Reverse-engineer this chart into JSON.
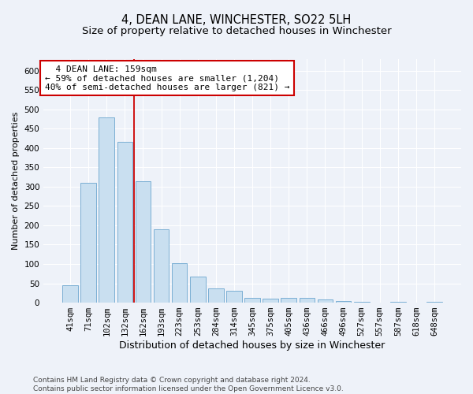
{
  "title": "4, DEAN LANE, WINCHESTER, SO22 5LH",
  "subtitle": "Size of property relative to detached houses in Winchester",
  "xlabel": "Distribution of detached houses by size in Winchester",
  "ylabel": "Number of detached properties",
  "categories": [
    "41sqm",
    "71sqm",
    "102sqm",
    "132sqm",
    "162sqm",
    "193sqm",
    "223sqm",
    "253sqm",
    "284sqm",
    "314sqm",
    "345sqm",
    "375sqm",
    "405sqm",
    "436sqm",
    "466sqm",
    "496sqm",
    "527sqm",
    "557sqm",
    "587sqm",
    "618sqm",
    "648sqm"
  ],
  "values": [
    45,
    310,
    480,
    415,
    315,
    190,
    103,
    68,
    37,
    30,
    13,
    10,
    12,
    12,
    8,
    5,
    3,
    1,
    3,
    1,
    3
  ],
  "bar_color": "#c9dff0",
  "bar_edge_color": "#7aafd4",
  "vline_x_index": 3.5,
  "vline_color": "#cc0000",
  "annotation_text": "  4 DEAN LANE: 159sqm\n← 59% of detached houses are smaller (1,204)\n40% of semi-detached houses are larger (821) →",
  "annotation_box_color": "#ffffff",
  "annotation_box_edge": "#cc0000",
  "ylim": [
    0,
    630
  ],
  "yticks": [
    0,
    50,
    100,
    150,
    200,
    250,
    300,
    350,
    400,
    450,
    500,
    550,
    600
  ],
  "background_color": "#eef2f9",
  "grid_color": "#ffffff",
  "footnote": "Contains HM Land Registry data © Crown copyright and database right 2024.\nContains public sector information licensed under the Open Government Licence v3.0.",
  "title_fontsize": 10.5,
  "subtitle_fontsize": 9.5,
  "xlabel_fontsize": 9,
  "ylabel_fontsize": 8,
  "tick_fontsize": 7.5,
  "annotation_fontsize": 8,
  "footnote_fontsize": 6.5
}
